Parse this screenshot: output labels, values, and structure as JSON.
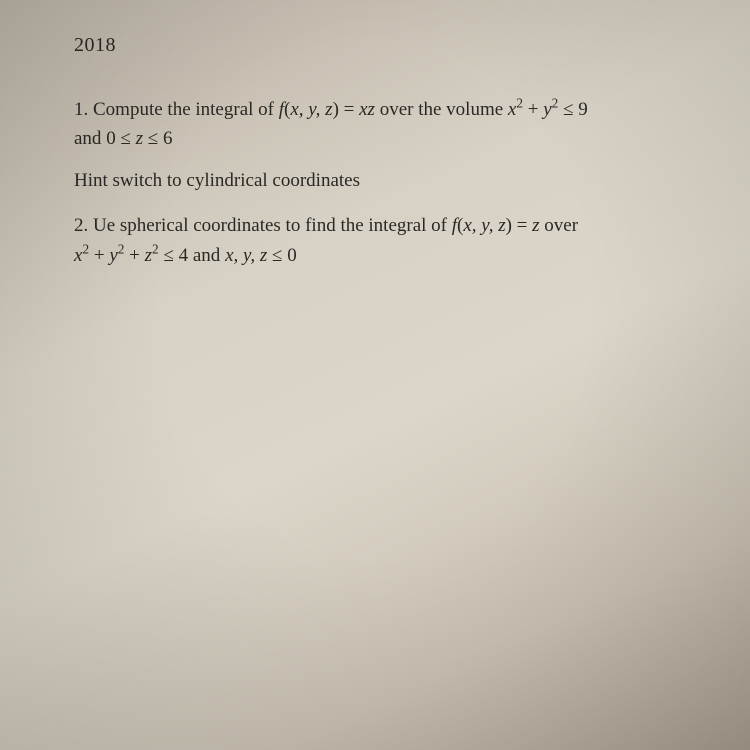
{
  "header": {
    "year": "2018"
  },
  "problems": [
    {
      "number": "1.",
      "text_pre": "Compute the integral of ",
      "func": "f(x, y, z) = xz",
      "text_mid": " over the volume ",
      "region1": "x² + y² ≤ 9",
      "line2_pre": "and ",
      "region2": "0 ≤ z ≤ 6",
      "hint": "Hint switch to cylindrical coordinates"
    },
    {
      "number": "2.",
      "text_pre": "Ue spherical coordinates to find the integral of ",
      "func": "f(x, y, z) = z",
      "text_mid": " over",
      "region1": "x² + y² + z² ≤ 4",
      "text_and": " and ",
      "region2": "x, y, z ≤ 0"
    }
  ],
  "style": {
    "text_color": "#2a2824",
    "bg_top": "#b8b0a4",
    "bg_mid": "#dcd6ca",
    "bg_bot": "#a89e8e",
    "font_size_body": 19,
    "font_size_year": 20
  }
}
